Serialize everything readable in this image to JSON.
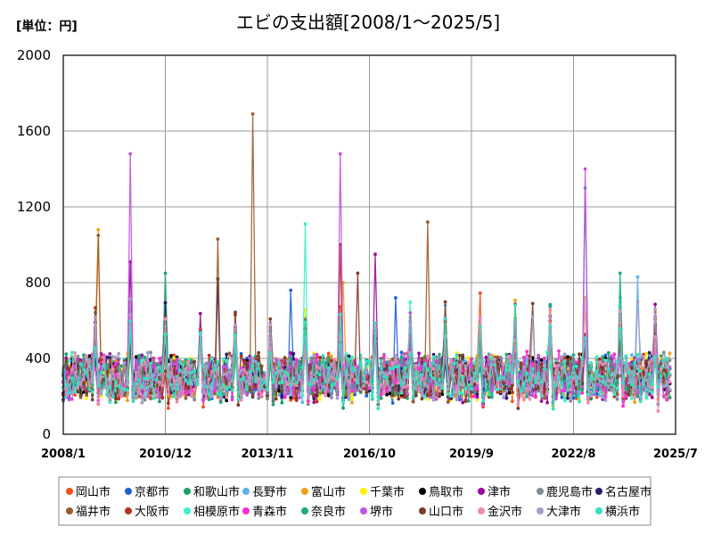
{
  "chart_data": {
    "type": "line",
    "unit": "[単位：円]",
    "title": "エビの支出額[2008/1～2025/5]",
    "ylim": [
      0,
      2000
    ],
    "y_ticks": [
      "0",
      "400",
      "800",
      "1200",
      "1600",
      "2000"
    ],
    "x_tick_labels": [
      "2008/1",
      "2010/12",
      "2013/11",
      "2016/10",
      "2019/9",
      "2022/8",
      "2025/7"
    ],
    "grid": true,
    "legend_position": "bottom",
    "x_start": "2008/1",
    "x_end": "2025/5",
    "x_axis_end": "2025/7",
    "baseline": 300,
    "series": [
      {
        "name": "岡山市",
        "color": "#f0501e",
        "peaks": []
      },
      {
        "name": "京都市",
        "color": "#1f5fd6",
        "peaks": [
          [
            2014.5,
            760
          ],
          [
            2017.5,
            720
          ]
        ]
      },
      {
        "name": "和歌山市",
        "color": "#1aa36a",
        "peaks": [
          [
            2010.92,
            850
          ],
          [
            2012.42,
            820
          ]
        ]
      },
      {
        "name": "長野市",
        "color": "#5ab4ea",
        "peaks": [
          [
            2024.42,
            830
          ]
        ]
      },
      {
        "name": "富山市",
        "color": "#f0a014",
        "peaks": [
          [
            2009.0,
            1080
          ],
          [
            2016.0,
            800
          ],
          [
            2022.92,
            720
          ]
        ]
      },
      {
        "name": "千葉市",
        "color": "#fff000",
        "peaks": []
      },
      {
        "name": "鳥取市",
        "color": "#000000",
        "peaks": []
      },
      {
        "name": "津市",
        "color": "#9b0a9b",
        "peaks": [
          [
            2009.92,
            910
          ],
          [
            2016.92,
            950
          ]
        ]
      },
      {
        "name": "鹿児島市",
        "color": "#7f8c9a",
        "peaks": []
      },
      {
        "name": "名古屋市",
        "color": "#2a1a6e",
        "peaks": [
          [
            2012.42,
            820
          ]
        ]
      },
      {
        "name": "福井市",
        "color": "#9e5a2b",
        "peaks": [
          [
            2013.42,
            1690
          ],
          [
            2012.42,
            1030
          ],
          [
            2009.0,
            1050
          ],
          [
            2018.42,
            1120
          ]
        ]
      },
      {
        "name": "大阪市",
        "color": "#b0321e",
        "peaks": [
          [
            2015.92,
            1000
          ]
        ]
      },
      {
        "name": "相模原市",
        "color": "#3eeec8",
        "peaks": [
          [
            2014.92,
            1110
          ]
        ]
      },
      {
        "name": "青森市",
        "color": "#ff2bd6",
        "peaks": []
      },
      {
        "name": "奈良市",
        "color": "#1ea886",
        "peaks": [
          [
            2022.92,
            1300
          ],
          [
            2023.92,
            850
          ]
        ]
      },
      {
        "name": "堺市",
        "color": "#c252e0",
        "peaks": [
          [
            2009.92,
            1480
          ],
          [
            2015.92,
            1480
          ],
          [
            2022.92,
            1400
          ]
        ]
      },
      {
        "name": "山口市",
        "color": "#7a3e2a",
        "peaks": [
          [
            2016.42,
            850
          ],
          [
            2021.42,
            690
          ]
        ]
      },
      {
        "name": "金沢市",
        "color": "#ec8bb5",
        "peaks": []
      },
      {
        "name": "大津市",
        "color": "#a79cc8",
        "peaks": [
          [
            2021.42,
            620
          ],
          [
            2024.42,
            700
          ]
        ]
      },
      {
        "name": "横浜市",
        "color": "#34e0c0",
        "peaks": []
      }
    ]
  }
}
